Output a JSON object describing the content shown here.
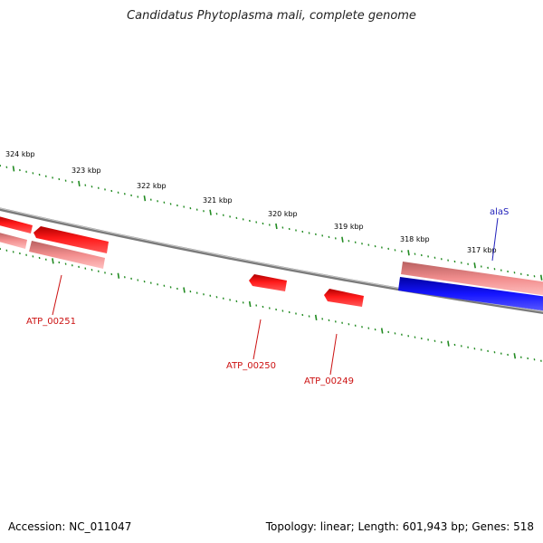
{
  "title": "Candidatus Phytoplasma mali, complete genome",
  "footer": {
    "accession": "Accession: NC_011047",
    "summary": "Topology: linear; Length: 601,943 bp; Genes: 518"
  },
  "colors": {
    "backbone": "#808080",
    "tick": "#228b22",
    "gene_red": "#ee1111",
    "gene_pink": "#f08c8c",
    "gene_blue": "#1414e6",
    "label_red": "#cc1111",
    "label_blue": "#2222bb"
  },
  "scale_labels": [
    "324 kbp",
    "323 kbp",
    "322 kbp",
    "321 kbp",
    "320 kbp",
    "319 kbp",
    "318 kbp",
    "317 kbp"
  ],
  "genes": [
    {
      "label": "ATP_00251",
      "color": "red"
    },
    {
      "label": "ATP_00250",
      "color": "red"
    },
    {
      "label": "ATP_00249",
      "color": "red"
    },
    {
      "label": "alaS",
      "color": "blue"
    }
  ]
}
